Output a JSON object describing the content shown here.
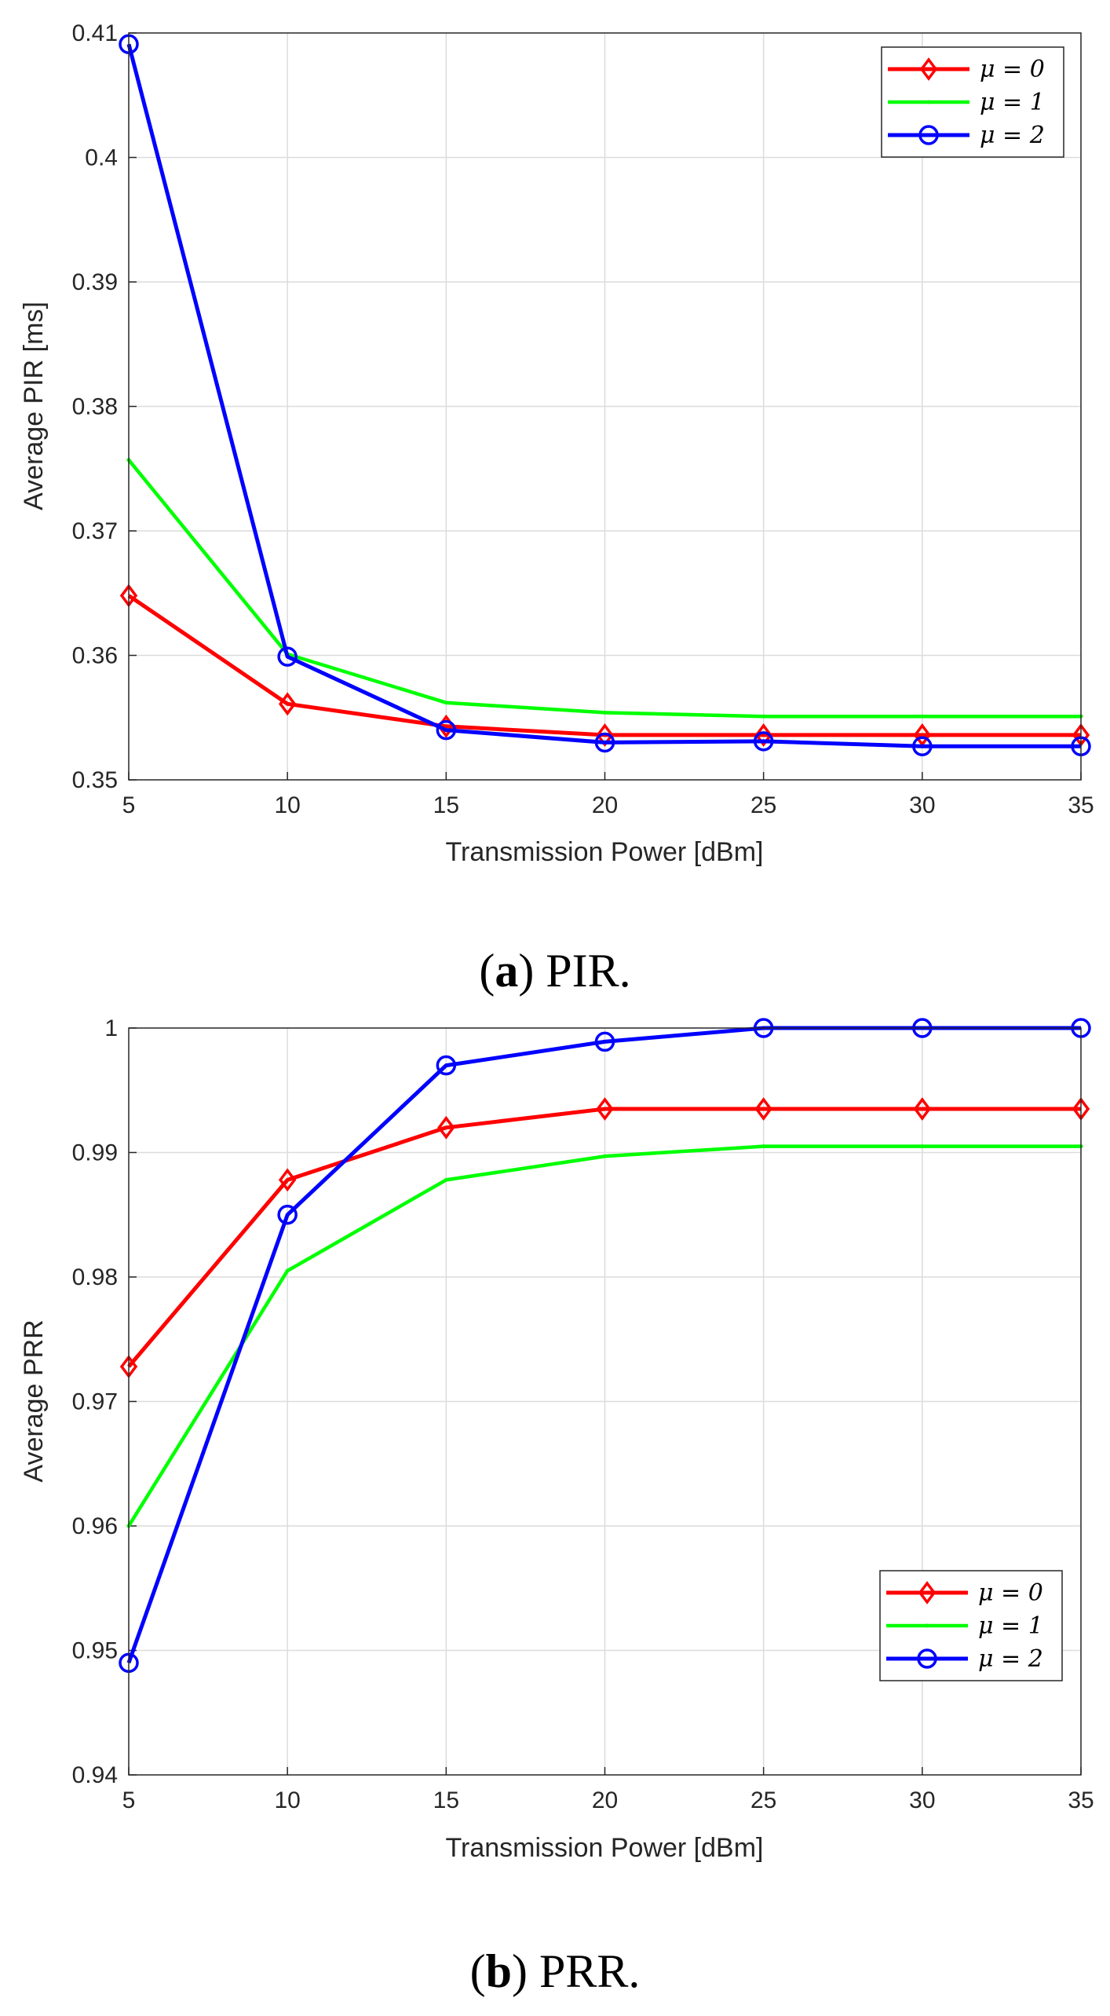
{
  "chart_data": [
    {
      "type": "line",
      "caption_label": "a",
      "caption_text": "PIR.",
      "xlabel": "Transmission Power [dBm]",
      "ylabel": "Average PIR [ms]",
      "x": [
        5,
        10,
        15,
        20,
        25,
        30,
        35
      ],
      "xlim": [
        5,
        35
      ],
      "ylim": [
        0.35,
        0.41
      ],
      "xticks": [
        5,
        10,
        15,
        20,
        25,
        30,
        35
      ],
      "yticks": [
        0.35,
        0.36,
        0.37,
        0.38,
        0.39,
        0.4,
        0.41
      ],
      "ytick_labels": [
        "0.35",
        "0.36",
        "0.37",
        "0.38",
        "0.39",
        "0.4",
        "0.41"
      ],
      "grid": true,
      "legend_position": "top-right",
      "series": [
        {
          "name": "μ = 0",
          "color": "#ff0000",
          "marker": "diamond",
          "values": [
            0.3648,
            0.3561,
            0.3543,
            0.3536,
            0.3536,
            0.3536,
            0.3536
          ]
        },
        {
          "name": "μ = 1",
          "color": "#00ff00",
          "marker": "point",
          "values": [
            0.3757,
            0.3601,
            0.3562,
            0.3554,
            0.3551,
            0.3551,
            0.3551
          ]
        },
        {
          "name": "μ = 2",
          "color": "#0000ff",
          "marker": "circle",
          "values": [
            0.4091,
            0.3599,
            0.354,
            0.353,
            0.3531,
            0.3527,
            0.3527
          ]
        }
      ]
    },
    {
      "type": "line",
      "caption_label": "b",
      "caption_text": "PRR.",
      "xlabel": "Transmission Power [dBm]",
      "ylabel": "Average PRR",
      "x": [
        5,
        10,
        15,
        20,
        25,
        30,
        35
      ],
      "xlim": [
        5,
        35
      ],
      "ylim": [
        0.94,
        1.0
      ],
      "xticks": [
        5,
        10,
        15,
        20,
        25,
        30,
        35
      ],
      "yticks": [
        0.94,
        0.95,
        0.96,
        0.97,
        0.98,
        0.99,
        1.0
      ],
      "ytick_labels": [
        "0.94",
        "0.95",
        "0.96",
        "0.97",
        "0.98",
        "0.99",
        "1"
      ],
      "grid": true,
      "legend_position": "lower-right",
      "series": [
        {
          "name": "μ = 0",
          "color": "#ff0000",
          "marker": "diamond",
          "values": [
            0.9728,
            0.9878,
            0.992,
            0.9935,
            0.9935,
            0.9935,
            0.9935
          ]
        },
        {
          "name": "μ = 1",
          "color": "#00ff00",
          "marker": "point",
          "values": [
            0.96,
            0.9805,
            0.9878,
            0.9897,
            0.9905,
            0.9905,
            0.9905
          ]
        },
        {
          "name": "μ = 2",
          "color": "#0000ff",
          "marker": "circle",
          "values": [
            0.949,
            0.985,
            0.997,
            0.9989,
            1.0,
            1.0,
            1.0
          ]
        }
      ]
    }
  ]
}
